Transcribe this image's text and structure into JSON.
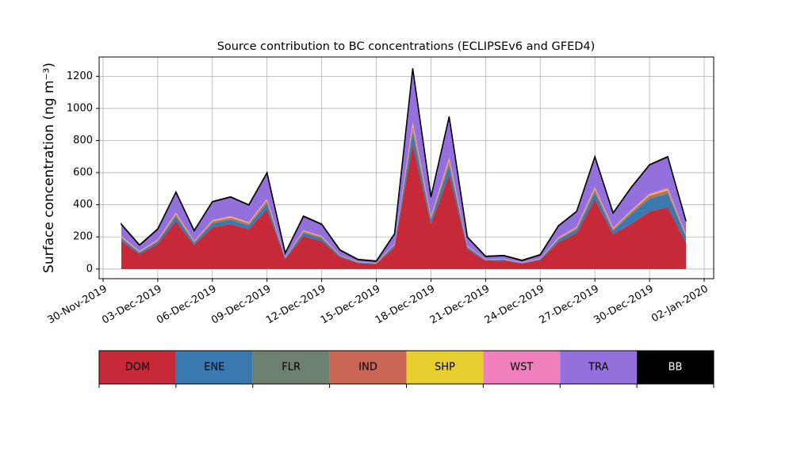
{
  "chart_data": {
    "type": "stacked_area",
    "title": "Source contribution to BC concentrations (ECLIPSEv6 and GFED4)",
    "y_label": "Surface concentration (ng m⁻³)",
    "x": [
      "2019-12-01",
      "2019-12-02",
      "2019-12-03",
      "2019-12-04",
      "2019-12-05",
      "2019-12-06",
      "2019-12-07",
      "2019-12-08",
      "2019-12-09",
      "2019-12-10",
      "2019-12-11",
      "2019-12-12",
      "2019-12-13",
      "2019-12-14",
      "2019-12-15",
      "2019-12-16",
      "2019-12-17",
      "2019-12-18",
      "2019-12-19",
      "2019-12-20",
      "2019-12-21",
      "2019-12-22",
      "2019-12-23",
      "2019-12-24",
      "2019-12-25",
      "2019-12-26",
      "2019-12-27",
      "2019-12-28",
      "2019-12-29",
      "2019-12-30",
      "2019-12-31",
      "2020-01-01"
    ],
    "series": [
      {
        "name": "DOM",
        "color": "#c62a38",
        "values": [
          174,
          93,
          155,
          298,
          149,
          260,
          279,
          248,
          372,
          62,
          205,
          174,
          74,
          37,
          31,
          136,
          775,
          279,
          589,
          124,
          50,
          53,
          34,
          56,
          167,
          223,
          434,
          217,
          281,
          358,
          385,
          165
        ]
      },
      {
        "name": "ENE",
        "color": "#3a78b0",
        "values": [
          17,
          9,
          15,
          29,
          14,
          25,
          27,
          24,
          36,
          6,
          20,
          17,
          7,
          4,
          3,
          13,
          75,
          27,
          57,
          12,
          5,
          5,
          3,
          5,
          16,
          22,
          42,
          21,
          61,
          78,
          84,
          36
        ]
      },
      {
        "name": "FLR",
        "color": "#6e8070",
        "values": [
          3,
          2,
          3,
          5,
          2,
          4,
          5,
          4,
          6,
          1,
          3,
          3,
          1,
          1,
          1,
          2,
          13,
          5,
          10,
          2,
          1,
          1,
          1,
          1,
          3,
          4,
          7,
          4,
          5,
          7,
          7,
          3
        ]
      },
      {
        "name": "IND",
        "color": "#c96656",
        "values": [
          6,
          3,
          5,
          10,
          5,
          8,
          9,
          8,
          12,
          2,
          7,
          6,
          2,
          1,
          1,
          4,
          25,
          9,
          19,
          4,
          2,
          2,
          1,
          2,
          5,
          7,
          14,
          7,
          10,
          13,
          14,
          6
        ]
      },
      {
        "name": "SHP",
        "color": "#e6cf2e",
        "values": [
          3,
          2,
          3,
          5,
          2,
          4,
          5,
          4,
          6,
          1,
          3,
          3,
          1,
          1,
          1,
          2,
          13,
          5,
          10,
          2,
          1,
          1,
          1,
          1,
          3,
          4,
          7,
          4,
          5,
          7,
          7,
          3
        ]
      },
      {
        "name": "WST",
        "color": "#f07fbe",
        "values": [
          3,
          2,
          3,
          5,
          2,
          4,
          5,
          4,
          6,
          1,
          3,
          3,
          1,
          1,
          1,
          2,
          13,
          5,
          10,
          2,
          1,
          1,
          1,
          1,
          3,
          4,
          7,
          4,
          5,
          7,
          7,
          3
        ]
      },
      {
        "name": "TRA",
        "color": "#9370db",
        "values": [
          72,
          37,
          64,
          126,
          64,
          113,
          118,
          106,
          160,
          25,
          87,
          72,
          32,
          13,
          10,
          59,
          334,
          118,
          253,
          52,
          18,
          20,
          12,
          22,
          71,
          94,
          187,
          91,
          141,
          178,
          194,
          82
        ]
      },
      {
        "name": "BB",
        "color": "#000000",
        "values": [
          2,
          2,
          2,
          2,
          2,
          2,
          2,
          2,
          2,
          2,
          2,
          2,
          2,
          2,
          2,
          2,
          2,
          2,
          2,
          2,
          2,
          2,
          2,
          2,
          2,
          2,
          2,
          2,
          2,
          2,
          2,
          2
        ]
      }
    ],
    "xlim": [
      "2019-11-30",
      "2020-01-02"
    ],
    "xticks": [
      {
        "value": "2019-11-30",
        "label": "30-Nov-2019"
      },
      {
        "value": "2019-12-03",
        "label": "03-Dec-2019"
      },
      {
        "value": "2019-12-06",
        "label": "06-Dec-2019"
      },
      {
        "value": "2019-12-09",
        "label": "09-Dec-2019"
      },
      {
        "value": "2019-12-12",
        "label": "12-Dec-2019"
      },
      {
        "value": "2019-12-15",
        "label": "15-Dec-2019"
      },
      {
        "value": "2019-12-18",
        "label": "18-Dec-2019"
      },
      {
        "value": "2019-12-21",
        "label": "21-Dec-2019"
      },
      {
        "value": "2019-12-24",
        "label": "24-Dec-2019"
      },
      {
        "value": "2019-12-27",
        "label": "27-Dec-2019"
      },
      {
        "value": "2019-12-30",
        "label": "30-Dec-2019"
      },
      {
        "value": "2020-01-02",
        "label": "02-Jan-2020"
      }
    ],
    "ylim": [
      -60,
      1320
    ],
    "yticks": [
      0,
      200,
      400,
      600,
      800,
      1000,
      1200
    ],
    "grid": true
  }
}
